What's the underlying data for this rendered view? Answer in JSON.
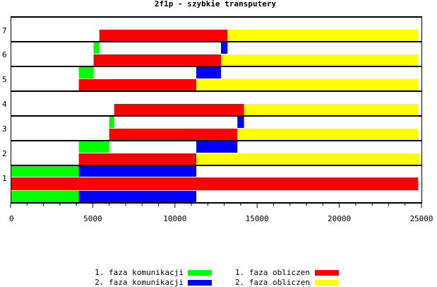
{
  "chart_data": {
    "type": "bar",
    "subtype": "horizontal-gantt",
    "title": "2f1p - szybkie transputery",
    "xlabel": "",
    "ylabel": "",
    "xlim": [
      0,
      25000
    ],
    "x_ticks": [
      0,
      5000,
      10000,
      15000,
      20000,
      25000
    ],
    "x_tick_labels": [
      "0",
      "5000",
      "10000",
      "15000",
      "20000",
      "25000"
    ],
    "rows": [
      "1",
      "2",
      "3",
      "4",
      "5",
      "6",
      "7"
    ],
    "phases": [
      {
        "key": "k1",
        "name": "1. faza komunikacji",
        "color": "#00ff00"
      },
      {
        "key": "k2",
        "name": "2. faza komunikacji",
        "color": "#0000ff"
      },
      {
        "key": "o1",
        "name": "1. faza obliczen",
        "color": "#ff0000"
      },
      {
        "key": "o2",
        "name": "2. faza obliczen",
        "color": "#ffff00"
      }
    ],
    "segments": [
      {
        "row": "1",
        "lane": "top",
        "phase": "k1",
        "start": 0,
        "end": 4150
      },
      {
        "row": "1",
        "lane": "top",
        "phase": "k2",
        "start": 4150,
        "end": 11300
      },
      {
        "row": "1",
        "lane": "middle",
        "phase": "o1",
        "start": 0,
        "end": 24800
      },
      {
        "row": "1",
        "lane": "bottom",
        "phase": "k1",
        "start": 0,
        "end": 4150
      },
      {
        "row": "1",
        "lane": "bottom",
        "phase": "k2",
        "start": 4150,
        "end": 11300
      },
      {
        "row": "2",
        "lane": "upper",
        "phase": "k1",
        "start": 4150,
        "end": 6000
      },
      {
        "row": "2",
        "lane": "upper",
        "phase": "k2",
        "start": 11300,
        "end": 13800
      },
      {
        "row": "2",
        "lane": "lower",
        "phase": "o1",
        "start": 4150,
        "end": 11300
      },
      {
        "row": "2",
        "lane": "lower",
        "phase": "o2",
        "start": 11300,
        "end": 24900
      },
      {
        "row": "3",
        "lane": "upper",
        "phase": "k1",
        "start": 6000,
        "end": 6300
      },
      {
        "row": "3",
        "lane": "upper",
        "phase": "k2",
        "start": 13800,
        "end": 14200
      },
      {
        "row": "3",
        "lane": "lower",
        "phase": "o1",
        "start": 6000,
        "end": 13800
      },
      {
        "row": "3",
        "lane": "lower",
        "phase": "o2",
        "start": 13800,
        "end": 24800
      },
      {
        "row": "4",
        "lane": "lower",
        "phase": "o1",
        "start": 6300,
        "end": 14200
      },
      {
        "row": "4",
        "lane": "lower",
        "phase": "o2",
        "start": 14200,
        "end": 24800
      },
      {
        "row": "5",
        "lane": "upper",
        "phase": "k1",
        "start": 4150,
        "end": 5050
      },
      {
        "row": "5",
        "lane": "upper",
        "phase": "k2",
        "start": 11300,
        "end": 12800
      },
      {
        "row": "5",
        "lane": "lower",
        "phase": "o1",
        "start": 4150,
        "end": 11300
      },
      {
        "row": "5",
        "lane": "lower",
        "phase": "o2",
        "start": 11300,
        "end": 24800
      },
      {
        "row": "6",
        "lane": "upper",
        "phase": "k1",
        "start": 5050,
        "end": 5400
      },
      {
        "row": "6",
        "lane": "upper",
        "phase": "k2",
        "start": 12800,
        "end": 13200
      },
      {
        "row": "6",
        "lane": "lower",
        "phase": "o1",
        "start": 5050,
        "end": 12800
      },
      {
        "row": "6",
        "lane": "lower",
        "phase": "o2",
        "start": 12800,
        "end": 24800
      },
      {
        "row": "7",
        "lane": "lower",
        "phase": "o1",
        "start": 5400,
        "end": 13200
      },
      {
        "row": "7",
        "lane": "lower",
        "phase": "o2",
        "start": 13200,
        "end": 24800
      }
    ]
  }
}
